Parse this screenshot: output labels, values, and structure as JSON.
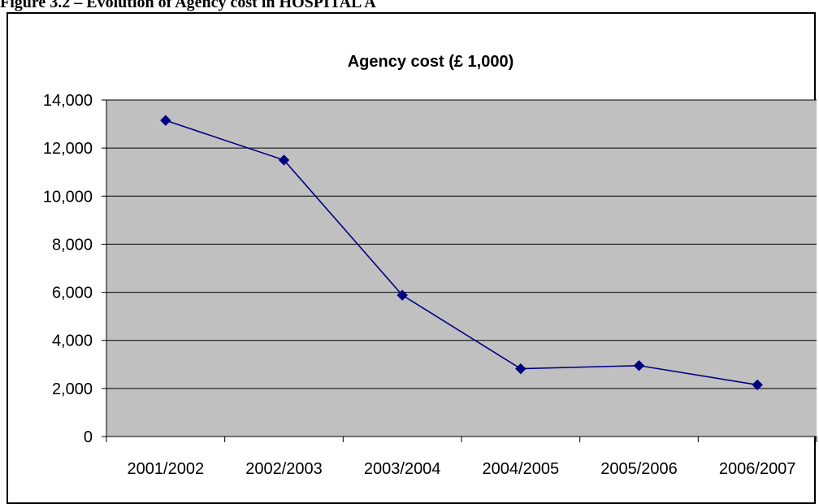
{
  "figure_caption": "Figure 3.2 – Evolution of Agency cost in HOSPITAL A",
  "chart_data": {
    "type": "line",
    "title": "Agency cost (£ 1,000)",
    "xlabel": "",
    "ylabel": "",
    "categories": [
      "2001/2002",
      "2002/2003",
      "2003/2004",
      "2004/2005",
      "2005/2006",
      "2006/2007"
    ],
    "series": [
      {
        "values": [
          13150,
          11500,
          5880,
          2820,
          2950,
          2150
        ]
      }
    ],
    "ylim": [
      0,
      14000
    ],
    "yticks": [
      0,
      2000,
      4000,
      6000,
      8000,
      10000,
      12000,
      14000
    ],
    "ytick_labels": [
      "0",
      "2,000",
      "4,000",
      "6,000",
      "8,000",
      "10,000",
      "12,000",
      "14,000"
    ],
    "grid": true,
    "legend": "none",
    "colors": {
      "line": "#000080",
      "marker": "#000080",
      "plot_bg": "#c0c0c0",
      "grid": "#000000"
    }
  }
}
